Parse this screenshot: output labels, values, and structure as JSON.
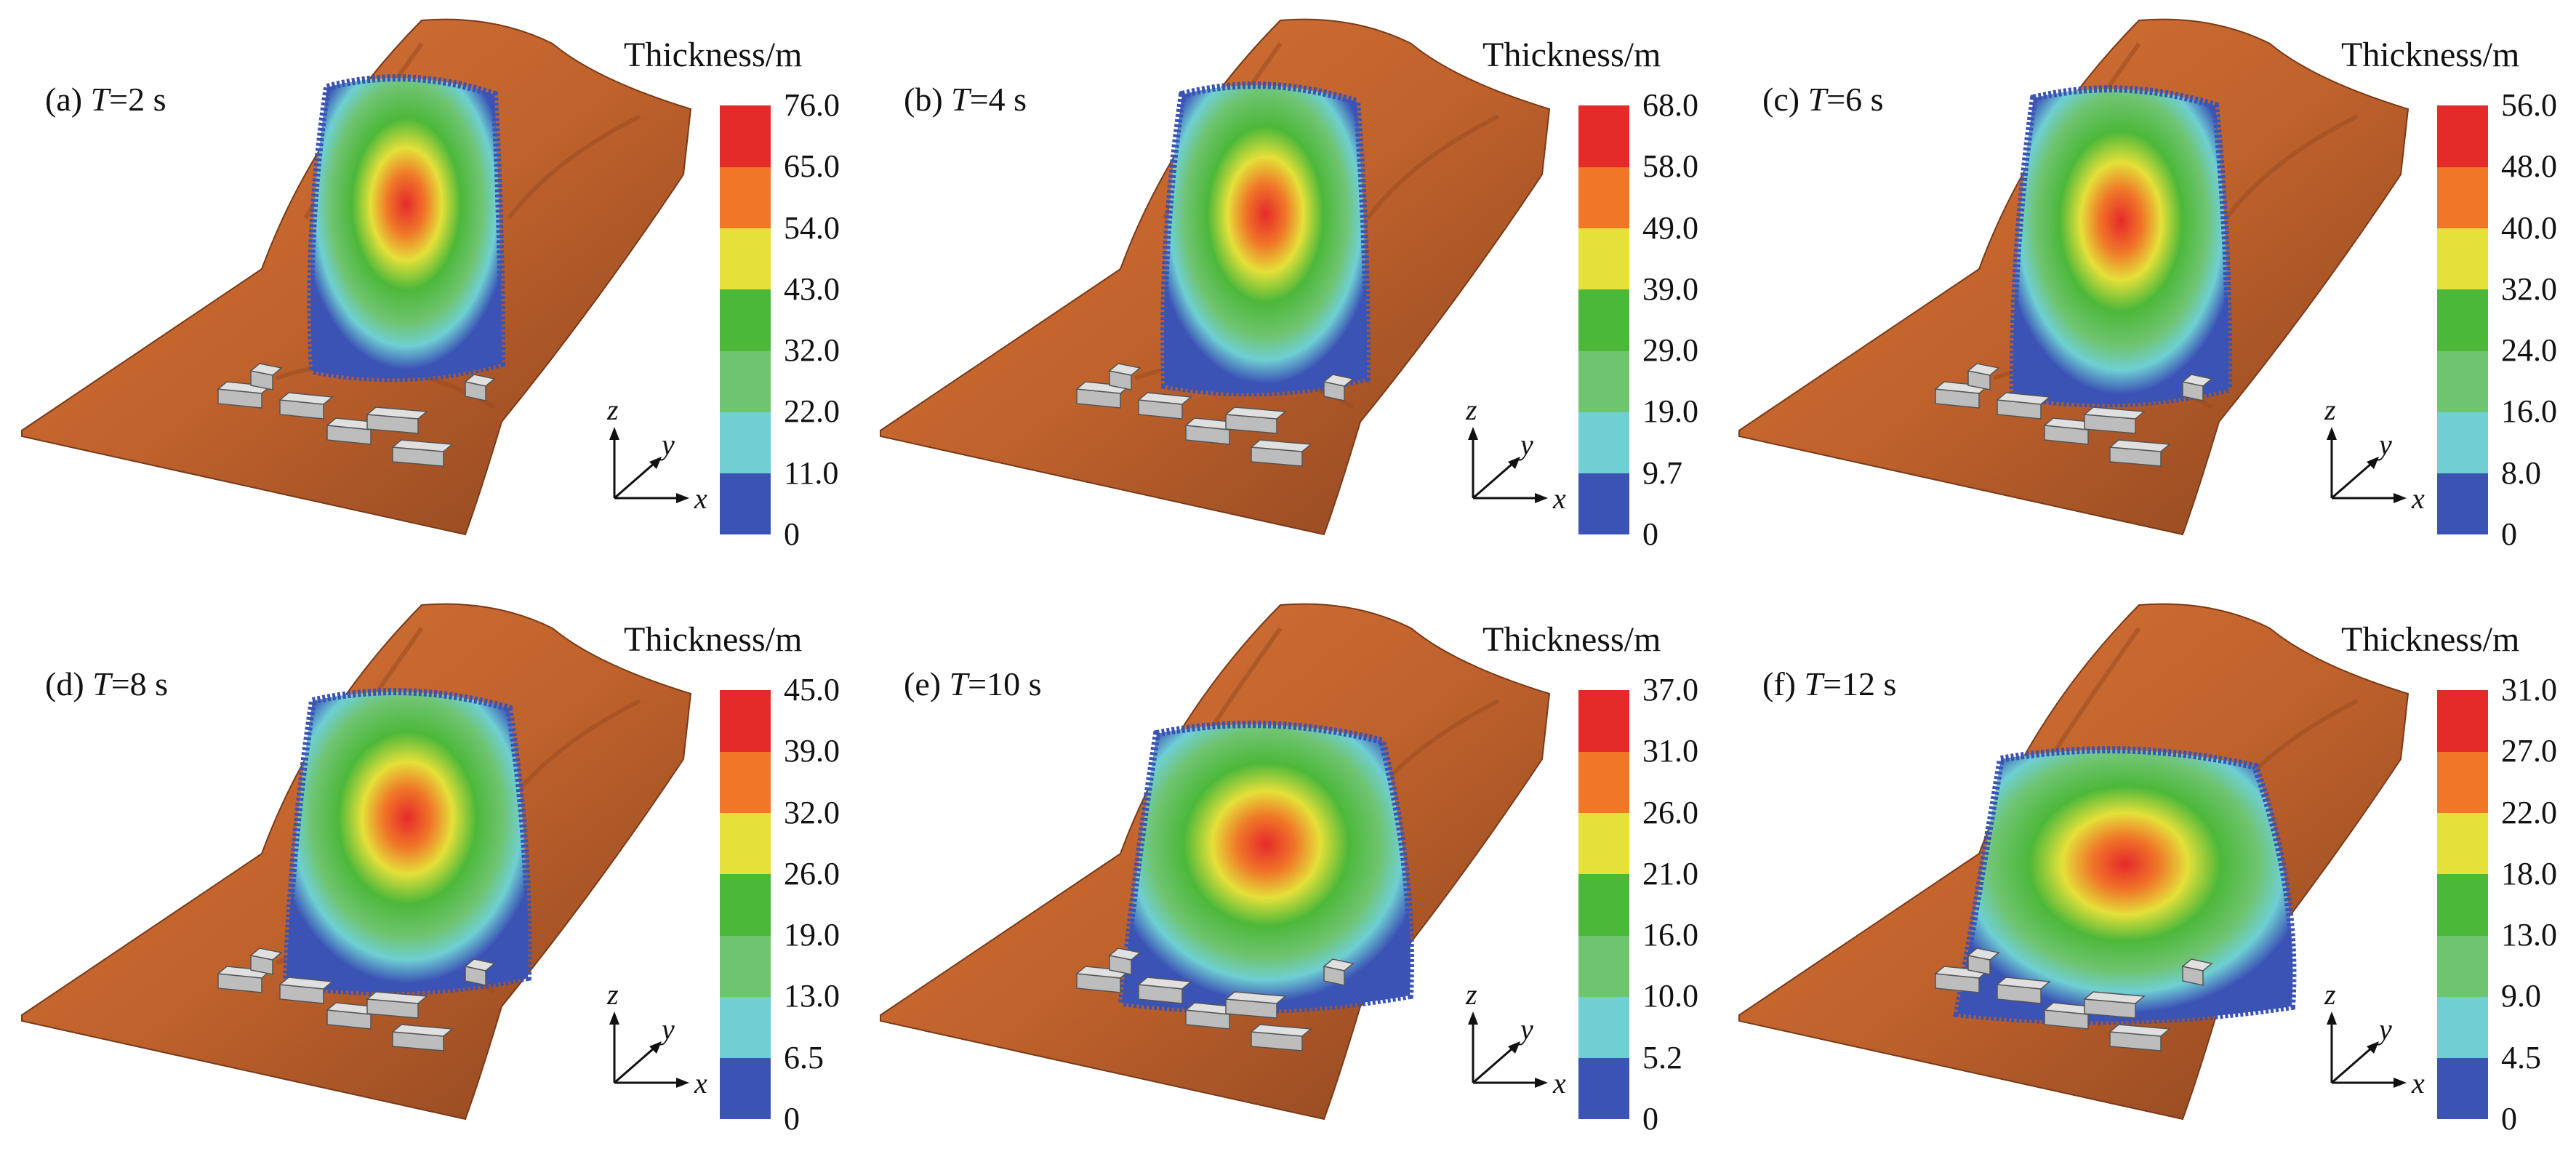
{
  "figure": {
    "legend_title": "Thickness/m",
    "axes": {
      "x": "x",
      "y": "y",
      "z": "z"
    },
    "colorbar_colors": [
      "#3b53b5",
      "#6fcfd3",
      "#6fc470",
      "#4cb83a",
      "#e5e03a",
      "#f07628",
      "#e52a2a"
    ],
    "terrain_color": "#c0622c",
    "panels": [
      {
        "id": "a",
        "prefix": "(a) ",
        "var": "T",
        "time": "=2 s",
        "ticks": [
          "0",
          "11.0",
          "22.0",
          "32.0",
          "43.0",
          "54.0",
          "65.0",
          "76.0"
        ]
      },
      {
        "id": "b",
        "prefix": "(b) ",
        "var": "T",
        "time": "=4 s",
        "ticks": [
          "0",
          "9.7",
          "19.0",
          "29.0",
          "39.0",
          "49.0",
          "58.0",
          "68.0"
        ]
      },
      {
        "id": "c",
        "prefix": "(c) ",
        "var": "T",
        "time": "=6 s",
        "ticks": [
          "0",
          "8.0",
          "16.0",
          "24.0",
          "32.0",
          "40.0",
          "48.0",
          "56.0"
        ]
      },
      {
        "id": "d",
        "prefix": "(d) ",
        "var": "T",
        "time": "=8 s",
        "ticks": [
          "0",
          "6.5",
          "13.0",
          "19.0",
          "26.0",
          "32.0",
          "39.0",
          "45.0"
        ]
      },
      {
        "id": "e",
        "prefix": "(e) ",
        "var": "T",
        "time": "=10 s",
        "ticks": [
          "0",
          "5.2",
          "10.0",
          "16.0",
          "21.0",
          "26.0",
          "31.0",
          "37.0"
        ]
      },
      {
        "id": "f",
        "prefix": "(f) ",
        "var": "T",
        "time": "=12 s",
        "ticks": [
          "0",
          "4.5",
          "9.0",
          "13.0",
          "18.0",
          "22.0",
          "27.0",
          "31.0"
        ]
      }
    ]
  }
}
